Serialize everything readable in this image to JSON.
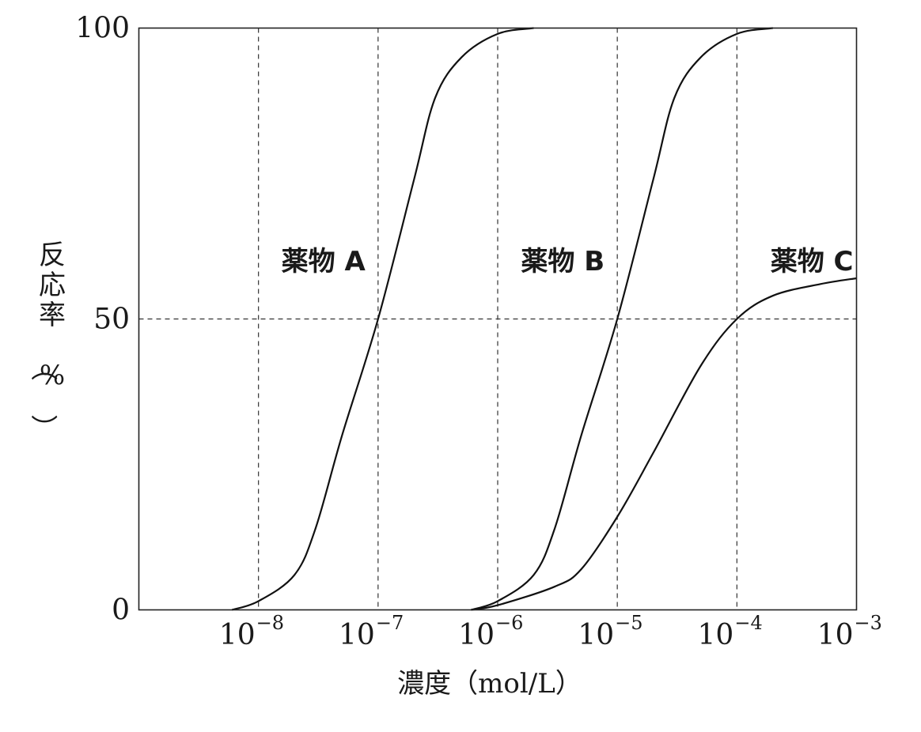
{
  "chart_data": {
    "type": "line",
    "x_scale": "log",
    "xlabel": "濃度（mol/L）",
    "ylabel": "反応率（%）",
    "ylabel_chars": [
      "反",
      "応",
      "率",
      "（",
      "%",
      "）"
    ],
    "xlim": [
      1e-09,
      0.001
    ],
    "ylim": [
      0,
      100
    ],
    "yticks": [
      0,
      50,
      100
    ],
    "ytick_labels": [
      "0",
      "50",
      "100"
    ],
    "xticks": [
      1e-08,
      1e-07,
      1e-06,
      1e-05,
      0.0001,
      0.001
    ],
    "xtick_labels": [
      {
        "base": "10",
        "exp": "−8"
      },
      {
        "base": "10",
        "exp": "−7"
      },
      {
        "base": "10",
        "exp": "−6"
      },
      {
        "base": "10",
        "exp": "−5"
      },
      {
        "base": "10",
        "exp": "−4"
      },
      {
        "base": "10",
        "exp": "−3"
      }
    ],
    "grid": {
      "vertical_dashed_at": [
        1e-08,
        1e-07,
        1e-06,
        1e-05,
        0.0001
      ],
      "horizontal_dashed_at": [
        50
      ]
    },
    "series": [
      {
        "name": "薬物 A",
        "points": [
          [
            6e-09,
            0
          ],
          [
            1e-08,
            1.5
          ],
          [
            2e-08,
            6
          ],
          [
            3e-08,
            14
          ],
          [
            5e-08,
            30
          ],
          [
            1e-07,
            50
          ],
          [
            2e-07,
            74
          ],
          [
            3e-07,
            88
          ],
          [
            5e-07,
            95
          ],
          [
            1e-06,
            99
          ],
          [
            2e-06,
            100
          ]
        ]
      },
      {
        "name": "薬物 B",
        "points": [
          [
            6e-07,
            0
          ],
          [
            1e-06,
            1.5
          ],
          [
            2e-06,
            6
          ],
          [
            3e-06,
            14
          ],
          [
            5e-06,
            30
          ],
          [
            1e-05,
            50
          ],
          [
            2e-05,
            74
          ],
          [
            3e-05,
            88
          ],
          [
            5e-05,
            95
          ],
          [
            0.0001,
            99
          ],
          [
            0.0002,
            100
          ]
        ]
      },
      {
        "name": "薬物 C",
        "points": [
          [
            6e-07,
            0
          ],
          [
            1e-06,
            0.8
          ],
          [
            3e-06,
            4
          ],
          [
            5e-06,
            7
          ],
          [
            1e-05,
            16
          ],
          [
            2e-05,
            27
          ],
          [
            5e-05,
            42
          ],
          [
            0.0001,
            50
          ],
          [
            0.0002,
            54
          ],
          [
            0.0005,
            56
          ],
          [
            0.001,
            57
          ]
        ]
      }
    ]
  }
}
